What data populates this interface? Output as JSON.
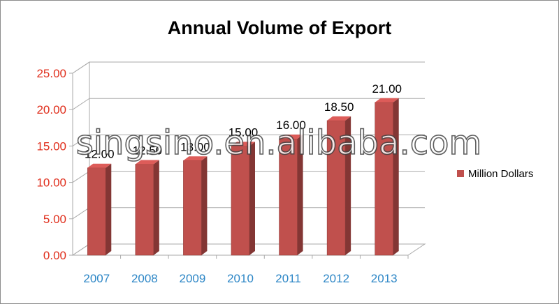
{
  "chart_data": {
    "type": "bar",
    "title": "Annual Volume of Export",
    "categories": [
      "2007",
      "2008",
      "2009",
      "2010",
      "2011",
      "2012",
      "2013"
    ],
    "series": [
      {
        "name": "Million Dollars",
        "values": [
          12.0,
          12.5,
          13.0,
          15.0,
          16.0,
          18.5,
          21.0
        ],
        "data_labels": [
          "12.00",
          "12.50",
          "13.00",
          "15.00",
          "16.00",
          "18.50",
          "21.00"
        ]
      }
    ],
    "yticks": [
      "0.00",
      "5.00",
      "10.00",
      "15.00",
      "20.00",
      "25.00"
    ],
    "ylim": [
      0,
      25
    ],
    "grid": true,
    "legend_position": "right",
    "colors": {
      "bar": "#c0504d",
      "ytick": "#e0301e",
      "xtick": "#2c86c6",
      "grid": "#aaaaaa"
    }
  },
  "watermark": "singsino.en.alibaba.com"
}
